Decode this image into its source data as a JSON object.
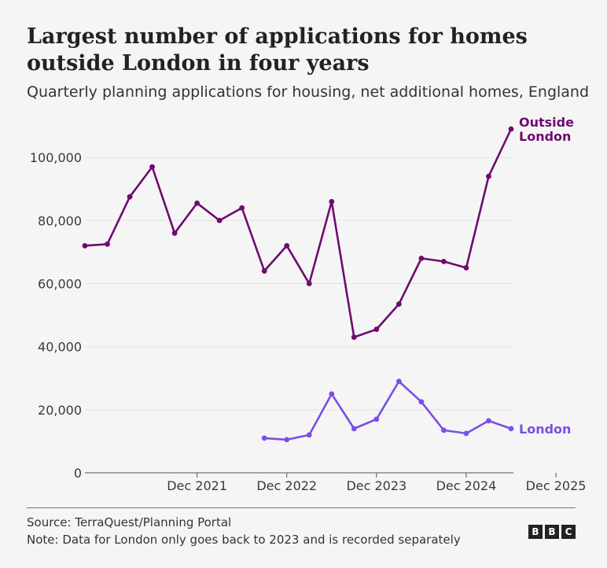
{
  "chart_data": {
    "type": "line",
    "title": "Largest number of applications for homes outside London in four years",
    "subtitle": "Quarterly planning applications for housing, net additional homes, England",
    "x": [
      "Sep 2020",
      "Dec 2020",
      "Mar 2021",
      "Jun 2021",
      "Sep 2021",
      "Dec 2021",
      "Mar 2022",
      "Jun 2022",
      "Sep 2022",
      "Dec 2022",
      "Mar 2023",
      "Jun 2023",
      "Sep 2023",
      "Dec 2023",
      "Mar 2024",
      "Jun 2024",
      "Sep 2024",
      "Dec 2024",
      "Mar 2025",
      "Jun 2025",
      "Sep 2025",
      "Dec 2025"
    ],
    "x_tick_labels": [
      "Dec 2021",
      "Dec 2022",
      "Dec 2023",
      "Dec 2024",
      "Dec 2025"
    ],
    "ylim": [
      0,
      110000
    ],
    "y_ticks": [
      0,
      20000,
      40000,
      60000,
      80000,
      100000
    ],
    "y_tick_labels": [
      "0",
      "20,000",
      "40,000",
      "60,000",
      "80,000",
      "100,000"
    ],
    "grid": true,
    "series": [
      {
        "name": "Outside London",
        "label_lines": [
          "Outside",
          "London"
        ],
        "color": "#6e0b6e",
        "values": [
          72000,
          72500,
          87500,
          97000,
          76000,
          85500,
          80000,
          84000,
          64000,
          72000,
          60000,
          86000,
          43000,
          45500,
          53500,
          68000,
          67000,
          65000,
          94000,
          109000,
          null,
          null
        ]
      },
      {
        "name": "London",
        "label_lines": [
          "London"
        ],
        "color": "#7b4ee6",
        "values": [
          null,
          null,
          null,
          null,
          null,
          null,
          null,
          null,
          11000,
          10500,
          12000,
          25000,
          14000,
          17000,
          29000,
          22500,
          13500,
          12500,
          16500,
          14000,
          null,
          null
        ]
      }
    ]
  },
  "footer": {
    "source": "Source: TerraQuest/Planning Portal",
    "note": "Note: Data for London only goes back to 2023 and is recorded separately",
    "logo_letters": [
      "B",
      "B",
      "C"
    ]
  }
}
